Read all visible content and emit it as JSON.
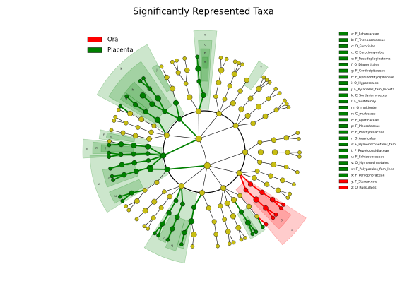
{
  "chart_data": {
    "type": "cladogram",
    "title": "Significantly Represented Taxa",
    "legend": [
      {
        "name": "Oral",
        "color": "#ff0000"
      },
      {
        "name": "Placenta",
        "color": "#008000"
      }
    ],
    "node_color": "#c8be13",
    "clades": [
      {
        "letter": "a",
        "label": "a: F_Latoruaceae",
        "color": "#008000"
      },
      {
        "letter": "b",
        "label": "b: F_Trichocomaceae",
        "color": "#008000"
      },
      {
        "letter": "c",
        "label": "c: O_Eurotiales",
        "color": "#008000"
      },
      {
        "letter": "d",
        "label": "d: C_Eurotiomycetes",
        "color": "#008000"
      },
      {
        "letter": "e",
        "label": "e: F_Pseudoplagiostoma",
        "color": "#008000"
      },
      {
        "letter": "f",
        "label": "f: O_Diaporthales",
        "color": "#008000"
      },
      {
        "letter": "g",
        "label": "g: F_Cordycipitaceae",
        "color": "#008000"
      },
      {
        "letter": "h",
        "label": "h: F_Ophiocordycipitaceae",
        "color": "#008000"
      },
      {
        "letter": "i",
        "label": "i: O_Hypocreales",
        "color": "#008000"
      },
      {
        "letter": "j",
        "label": "j: F_Xylariales_fam_Incerta",
        "color": "#008000"
      },
      {
        "letter": "k",
        "label": "k: C_Sordariomycetes",
        "color": "#008000"
      },
      {
        "letter": "l",
        "label": "l: F_multifamily",
        "color": "#008000"
      },
      {
        "letter": "m",
        "label": "m: O_multiorder",
        "color": "#008000"
      },
      {
        "letter": "n",
        "label": "n: C_multiclass",
        "color": "#008000"
      },
      {
        "letter": "o",
        "label": "o: F_Agaricaceae",
        "color": "#008000"
      },
      {
        "letter": "p",
        "label": "p: F_Pleurotaceae",
        "color": "#008000"
      },
      {
        "letter": "q",
        "label": "q: F_Psathyrellaceae",
        "color": "#008000"
      },
      {
        "letter": "r",
        "label": "r: O_Agaricales",
        "color": "#008000"
      },
      {
        "letter": "s",
        "label": "s: F_Hymenochaetales_fam",
        "color": "#008000"
      },
      {
        "letter": "t",
        "label": "t: F_Repetobasidiaceae",
        "color": "#008000"
      },
      {
        "letter": "u",
        "label": "u: F_Schizoporaceae",
        "color": "#008000"
      },
      {
        "letter": "v",
        "label": "v: O_Hymenochaetales",
        "color": "#008000"
      },
      {
        "letter": "w",
        "label": "w: F_Polyporales_fam_Ince",
        "color": "#008000"
      },
      {
        "letter": "x",
        "label": "x: F_Peniophoraceae",
        "color": "#008000"
      },
      {
        "letter": "y",
        "label": "y: F_Stereaceae",
        "color": "#ff0000"
      },
      {
        "letter": "z",
        "label": "z: O_Russulales",
        "color": "#ff0000"
      }
    ]
  }
}
